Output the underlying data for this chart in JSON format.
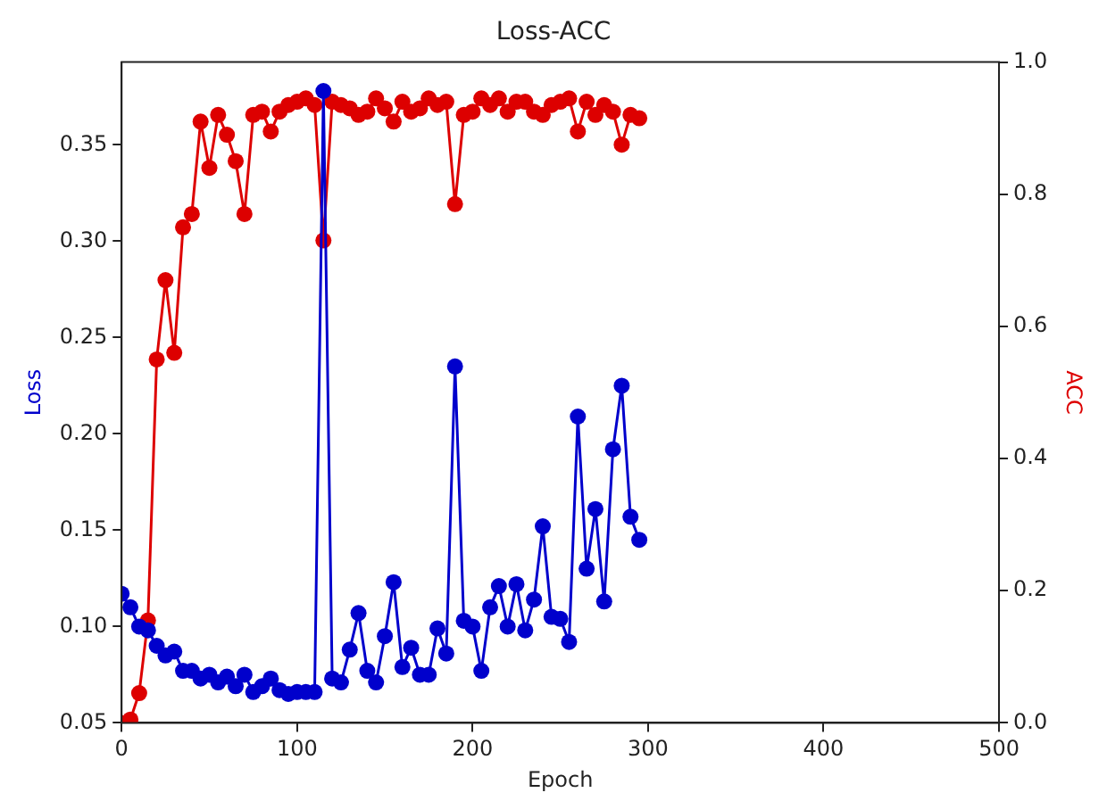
{
  "chart_data": {
    "type": "line",
    "title": "Loss-ACC",
    "xlabel": "Epoch",
    "ylabel": "Loss",
    "y2label": "ACC",
    "x": [
      0,
      5,
      10,
      15,
      20,
      25,
      30,
      35,
      40,
      45,
      50,
      55,
      60,
      65,
      70,
      75,
      80,
      85,
      90,
      95,
      100,
      105,
      110,
      115,
      120,
      125,
      130,
      135,
      140,
      145,
      150,
      155,
      160,
      165,
      170,
      175,
      180,
      185,
      190,
      195,
      200,
      205,
      210,
      215,
      220,
      225,
      230,
      235,
      240,
      245,
      250,
      255,
      260,
      265,
      270,
      275,
      280,
      285,
      290,
      295
    ],
    "series": [
      {
        "color": "#0000cc",
        "values": [
          0.117,
          0.11,
          0.1,
          0.098,
          0.09,
          0.085,
          0.087,
          0.077,
          0.077,
          0.073,
          0.075,
          0.071,
          0.074,
          0.069,
          0.075,
          0.066,
          0.069,
          0.073,
          0.067,
          0.065,
          0.066,
          0.066,
          0.066,
          0.378,
          0.073,
          0.071,
          0.088,
          0.107,
          0.077,
          0.071,
          0.095,
          0.123,
          0.079,
          0.089,
          0.075,
          0.075,
          0.099,
          0.086,
          0.235,
          0.103,
          0.1,
          0.077,
          0.11,
          0.121,
          0.1,
          0.122,
          0.098,
          0.114,
          0.152,
          0.105,
          0.104,
          0.092,
          0.209,
          0.13,
          0.161,
          0.113,
          0.192,
          0.225,
          0.157,
          0.145
        ]
      },
      {
        "color": "#dd0000",
        "axis": "y2",
        "values": [
          0.0,
          0.005,
          0.045,
          0.155,
          0.55,
          0.67,
          0.56,
          0.75,
          0.77,
          0.91,
          0.84,
          0.92,
          0.89,
          0.85,
          0.77,
          0.92,
          0.925,
          0.895,
          0.925,
          0.935,
          0.94,
          0.945,
          0.935,
          0.73,
          0.94,
          0.935,
          0.93,
          0.92,
          0.925,
          0.945,
          0.93,
          0.91,
          0.94,
          0.925,
          0.93,
          0.945,
          0.935,
          0.94,
          0.785,
          0.92,
          0.925,
          0.945,
          0.935,
          0.945,
          0.925,
          0.94,
          0.94,
          0.925,
          0.92,
          0.935,
          0.94,
          0.945,
          0.895,
          0.94,
          0.92,
          0.935,
          0.925,
          0.875,
          0.92,
          0.915
        ]
      }
    ],
    "xlim": [
      0,
      500
    ],
    "xticks": [
      0,
      100,
      200,
      300,
      400,
      500
    ],
    "ylim": [
      0.05,
      0.393
    ],
    "yticks": [
      0.05,
      {
        "value": 0.1,
        "label": "0.10"
      },
      0.15,
      {
        "value": 0.2,
        "label": "0.20"
      },
      0.25,
      {
        "value": 0.3,
        "label": "0.30"
      },
      0.35
    ],
    "y2lim": [
      0,
      1
    ],
    "y2ticks": [
      {
        "value": 0,
        "label": "0.0"
      },
      0.2,
      0.4,
      0.6,
      0.8,
      {
        "value": 1,
        "label": "1.0"
      }
    ],
    "grid": false,
    "legend": false,
    "marker": "circle",
    "line_style": "solid"
  }
}
